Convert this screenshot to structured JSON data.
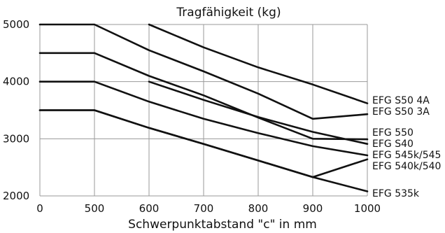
{
  "chart_data": {
    "type": "line",
    "title": "Tragfähigkeit (kg)",
    "xlabel": "Schwerpunktabstand \"c\" in mm",
    "ylabel": "",
    "xlim": [
      0,
      1000
    ],
    "ylim": [
      2000,
      5000
    ],
    "xticks": [
      0,
      500,
      600,
      700,
      800,
      900,
      1000
    ],
    "yticks": [
      2000,
      3000,
      4000,
      5000
    ],
    "grid": true,
    "series": [
      {
        "name": "EFG S50 4A",
        "x": [
          600,
          700,
          800,
          900,
          1000
        ],
        "y": [
          5000,
          4600,
          4250,
          3950,
          3620
        ]
      },
      {
        "name": "EFG S50 3A",
        "x": [
          0,
          500,
          600,
          700,
          800,
          900,
          1000
        ],
        "y": [
          5000,
          5000,
          4550,
          4180,
          3790,
          3350,
          3430
        ]
      },
      {
        "name": "EFG 550",
        "x": [
          0,
          500,
          600,
          700,
          800,
          900,
          1000
        ],
        "y": [
          4500,
          4500,
          4100,
          3760,
          3370,
          3000,
          2990
        ]
      },
      {
        "name": "EFG S40",
        "x": [
          600,
          700,
          800,
          900,
          1000
        ],
        "y": [
          4000,
          3680,
          3380,
          3120,
          2910
        ]
      },
      {
        "name": "EFG 545k/545",
        "x": [
          0,
          500,
          600,
          700,
          800,
          900,
          1000
        ],
        "y": [
          4000,
          4000,
          3650,
          3350,
          3100,
          2870,
          2710
        ]
      },
      {
        "name": "EFG 540k/540",
        "x": [
          0,
          500,
          600,
          700,
          800,
          900,
          1000
        ],
        "y": [
          3500,
          3500,
          3190,
          2910,
          2620,
          2330,
          2640
        ]
      },
      {
        "name": "EFG 535k",
        "x": [],
        "y": [],
        "end_y": 2080
      }
    ]
  }
}
